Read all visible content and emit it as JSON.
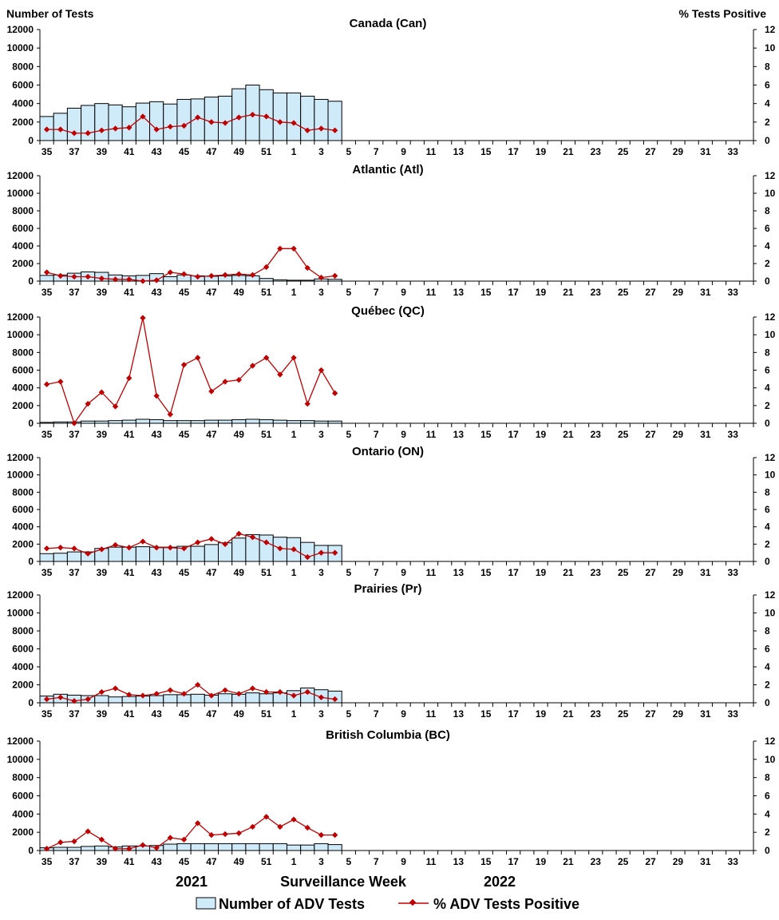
{
  "header": {
    "left_axis_title": "Number of Tests",
    "right_axis_title": "%  Tests Positive"
  },
  "footer": {
    "year_left": "2021",
    "x_axis_title": "Surveillance Week",
    "year_right": "2022"
  },
  "legend": {
    "bars_label": "Number of ADV Tests",
    "line_label": "% ADV Tests Positive"
  },
  "colors": {
    "bar_fill": "#cfeaf9",
    "bar_stroke": "#000000",
    "line": "#c00000"
  },
  "chart_data": [
    {
      "type": "bar",
      "title": "Canada (Can)",
      "weeks": [
        35,
        36,
        37,
        38,
        39,
        40,
        41,
        42,
        43,
        44,
        45,
        46,
        47,
        48,
        49,
        50,
        51,
        52,
        1,
        2,
        3,
        4
      ],
      "series": [
        {
          "name": "Number of ADV Tests",
          "axis": "left",
          "values": [
            2600,
            2950,
            3500,
            3800,
            4000,
            3850,
            3650,
            4050,
            4200,
            3950,
            4450,
            4500,
            4700,
            4800,
            5600,
            6000,
            5500,
            5150,
            5150,
            4800,
            4450,
            4250
          ]
        },
        {
          "name": "% ADV Tests Positive",
          "axis": "right",
          "type": "line",
          "values": [
            1.2,
            1.2,
            0.8,
            0.8,
            1.1,
            1.3,
            1.4,
            2.6,
            1.2,
            1.5,
            1.6,
            2.5,
            2.0,
            1.9,
            2.5,
            2.8,
            2.6,
            2.0,
            1.9,
            1.1,
            1.3,
            1.1
          ]
        }
      ],
      "x_ticks": [
        35,
        37,
        39,
        41,
        43,
        45,
        47,
        49,
        51,
        1,
        3,
        5,
        7,
        9,
        11,
        13,
        15,
        17,
        19,
        21,
        23,
        25,
        27,
        29,
        31,
        33
      ],
      "ylim_left": [
        0,
        12000
      ],
      "yticks_left": [
        0,
        2000,
        4000,
        6000,
        8000,
        10000,
        12000
      ],
      "ylim_right": [
        0,
        12
      ],
      "yticks_right": [
        0,
        2,
        4,
        6,
        8,
        10,
        12
      ]
    },
    {
      "type": "bar",
      "title": "Atlantic (Atl)",
      "weeks": [
        35,
        36,
        37,
        38,
        39,
        40,
        41,
        42,
        43,
        44,
        45,
        46,
        47,
        48,
        49,
        50,
        51,
        52,
        1,
        2,
        3,
        4
      ],
      "series": [
        {
          "name": "Number of ADV Tests",
          "axis": "left",
          "values": [
            650,
            700,
            900,
            1050,
            1000,
            700,
            600,
            650,
            850,
            500,
            700,
            600,
            550,
            600,
            650,
            600,
            300,
            150,
            100,
            100,
            250,
            200
          ]
        },
        {
          "name": "% ADV Tests Positive",
          "axis": "right",
          "type": "line",
          "values": [
            1.0,
            0.6,
            0.5,
            0.5,
            0.3,
            0.2,
            0.2,
            0.0,
            0.1,
            1.0,
            0.8,
            0.5,
            0.6,
            0.7,
            0.8,
            0.7,
            1.6,
            3.7,
            3.7,
            1.5,
            0.4,
            0.6
          ]
        }
      ],
      "x_ticks": [
        35,
        37,
        39,
        41,
        43,
        45,
        47,
        49,
        51,
        1,
        3,
        5,
        7,
        9,
        11,
        13,
        15,
        17,
        19,
        21,
        23,
        25,
        27,
        29,
        31,
        33
      ],
      "ylim_left": [
        0,
        12000
      ],
      "yticks_left": [
        0,
        2000,
        4000,
        6000,
        8000,
        10000,
        12000
      ],
      "ylim_right": [
        0,
        12
      ],
      "yticks_right": [
        0,
        2,
        4,
        6,
        8,
        10,
        12
      ]
    },
    {
      "type": "bar",
      "title": "Québec (QC)",
      "weeks": [
        35,
        36,
        37,
        38,
        39,
        40,
        41,
        42,
        43,
        44,
        45,
        46,
        47,
        48,
        49,
        50,
        51,
        52,
        1,
        2,
        3,
        4
      ],
      "series": [
        {
          "name": "Number of ADV Tests",
          "axis": "left",
          "values": [
            100,
            150,
            150,
            250,
            250,
            300,
            350,
            450,
            400,
            300,
            300,
            300,
            350,
            350,
            400,
            450,
            400,
            350,
            300,
            300,
            250,
            250
          ]
        },
        {
          "name": "% ADV Tests Positive",
          "axis": "right",
          "type": "line",
          "values": [
            4.4,
            4.7,
            0.0,
            2.2,
            3.5,
            1.9,
            5.1,
            11.9,
            3.1,
            1.0,
            6.6,
            7.4,
            3.6,
            4.7,
            4.9,
            6.5,
            7.4,
            5.5,
            7.4,
            2.2,
            6.0,
            3.4
          ]
        }
      ],
      "x_ticks": [
        35,
        37,
        39,
        41,
        43,
        45,
        47,
        49,
        51,
        1,
        3,
        5,
        7,
        9,
        11,
        13,
        15,
        17,
        19,
        21,
        23,
        25,
        27,
        29,
        31,
        33
      ],
      "ylim_left": [
        0,
        12000
      ],
      "yticks_left": [
        0,
        2000,
        4000,
        6000,
        8000,
        10000,
        12000
      ],
      "ylim_right": [
        0,
        12
      ],
      "yticks_right": [
        0,
        2,
        4,
        6,
        8,
        10,
        12
      ]
    },
    {
      "type": "bar",
      "title": "Ontario (ON)",
      "weeks": [
        35,
        36,
        37,
        38,
        39,
        40,
        41,
        42,
        43,
        44,
        45,
        46,
        47,
        48,
        49,
        50,
        51,
        52,
        1,
        2,
        3,
        4
      ],
      "series": [
        {
          "name": "Number of ADV Tests",
          "axis": "left",
          "values": [
            900,
            950,
            1100,
            1100,
            1500,
            1650,
            1650,
            1700,
            1650,
            1650,
            1750,
            1750,
            1950,
            2150,
            2700,
            3100,
            3050,
            2800,
            2750,
            2200,
            1850,
            1850
          ]
        },
        {
          "name": "% ADV Tests Positive",
          "axis": "right",
          "type": "line",
          "values": [
            1.5,
            1.6,
            1.5,
            0.9,
            1.4,
            1.9,
            1.6,
            2.3,
            1.6,
            1.6,
            1.5,
            2.2,
            2.6,
            2.0,
            3.2,
            2.8,
            2.2,
            1.5,
            1.4,
            0.5,
            1.0,
            1.0
          ]
        }
      ],
      "x_ticks": [
        35,
        37,
        39,
        41,
        43,
        45,
        47,
        49,
        51,
        1,
        3,
        5,
        7,
        9,
        11,
        13,
        15,
        17,
        19,
        21,
        23,
        25,
        27,
        29,
        31,
        33
      ],
      "ylim_left": [
        0,
        12000
      ],
      "yticks_left": [
        0,
        2000,
        4000,
        6000,
        8000,
        10000,
        12000
      ],
      "ylim_right": [
        0,
        12
      ],
      "yticks_right": [
        0,
        2,
        4,
        6,
        8,
        10,
        12
      ]
    },
    {
      "type": "bar",
      "title": "Prairies (Pr)",
      "weeks": [
        35,
        36,
        37,
        38,
        39,
        40,
        41,
        42,
        43,
        44,
        45,
        46,
        47,
        48,
        49,
        50,
        51,
        52,
        1,
        2,
        3,
        4
      ],
      "series": [
        {
          "name": "Number of ADV Tests",
          "axis": "left",
          "values": [
            750,
            950,
            850,
            800,
            800,
            650,
            700,
            750,
            800,
            900,
            900,
            950,
            850,
            1000,
            950,
            1100,
            1000,
            1100,
            1350,
            1650,
            1450,
            1300
          ]
        },
        {
          "name": "% ADV Tests Positive",
          "axis": "right",
          "type": "line",
          "values": [
            0.4,
            0.6,
            0.2,
            0.4,
            1.2,
            1.6,
            0.9,
            0.8,
            1.0,
            1.4,
            1.0,
            2.0,
            0.8,
            1.4,
            1.0,
            1.6,
            1.2,
            1.2,
            0.8,
            1.2,
            0.6,
            0.4
          ]
        }
      ],
      "x_ticks": [
        35,
        37,
        39,
        41,
        43,
        45,
        47,
        49,
        51,
        1,
        3,
        5,
        7,
        9,
        11,
        13,
        15,
        17,
        19,
        21,
        23,
        25,
        27,
        29,
        31,
        33
      ],
      "ylim_left": [
        0,
        12000
      ],
      "yticks_left": [
        0,
        2000,
        4000,
        6000,
        8000,
        10000,
        12000
      ],
      "ylim_right": [
        0,
        12
      ],
      "yticks_right": [
        0,
        2,
        4,
        6,
        8,
        10,
        12
      ]
    },
    {
      "type": "bar",
      "title": "British Columbia (BC)",
      "weeks": [
        35,
        36,
        37,
        38,
        39,
        40,
        41,
        42,
        43,
        44,
        45,
        46,
        47,
        48,
        49,
        50,
        51,
        52,
        1,
        2,
        3,
        4
      ],
      "series": [
        {
          "name": "Number of ADV Tests",
          "axis": "left",
          "values": [
            300,
            350,
            350,
            450,
            500,
            400,
            500,
            500,
            550,
            700,
            750,
            750,
            750,
            750,
            750,
            750,
            750,
            750,
            600,
            600,
            750,
            650
          ]
        },
        {
          "name": "% ADV Tests Positive",
          "axis": "right",
          "type": "line",
          "values": [
            0.2,
            0.9,
            1.0,
            2.1,
            1.2,
            0.2,
            0.2,
            0.6,
            0.3,
            1.4,
            1.2,
            3.0,
            1.7,
            1.8,
            1.9,
            2.6,
            3.7,
            2.6,
            3.4,
            2.5,
            1.7,
            1.7
          ]
        }
      ],
      "x_ticks": [
        35,
        37,
        39,
        41,
        43,
        45,
        47,
        49,
        51,
        1,
        3,
        5,
        7,
        9,
        11,
        13,
        15,
        17,
        19,
        21,
        23,
        25,
        27,
        29,
        31,
        33
      ],
      "ylim_left": [
        0,
        12000
      ],
      "yticks_left": [
        0,
        2000,
        4000,
        6000,
        8000,
        10000,
        12000
      ],
      "ylim_right": [
        0,
        12
      ],
      "yticks_right": [
        0,
        2,
        4,
        6,
        8,
        10,
        12
      ]
    }
  ]
}
